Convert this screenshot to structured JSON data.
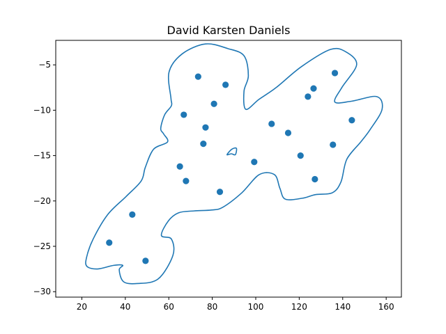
{
  "chart_data": {
    "type": "scatter",
    "title": "David Karsten Daniels",
    "xlabel": "",
    "ylabel": "",
    "xlim": [
      8,
      167
    ],
    "ylim": [
      -30.6,
      -2.3
    ],
    "xticks": [
      20,
      40,
      60,
      80,
      100,
      120,
      140,
      160
    ],
    "yticks": [
      -5,
      -10,
      -15,
      -20,
      -25,
      -30
    ],
    "xtick_labels": [
      "20",
      "40",
      "60",
      "80",
      "100",
      "120",
      "140",
      "160"
    ],
    "ytick_labels": [
      "−5",
      "−10",
      "−15",
      "−20",
      "−25",
      "−30"
    ],
    "grid": false,
    "colors": {
      "points": "#1f77b4",
      "contour": "#1f77b4"
    },
    "points": [
      {
        "x": 73.5,
        "y": -6.3
      },
      {
        "x": 86.1,
        "y": -7.2
      },
      {
        "x": 80.8,
        "y": -9.3
      },
      {
        "x": 66.9,
        "y": -10.5
      },
      {
        "x": 76.9,
        "y": -11.9
      },
      {
        "x": 75.9,
        "y": -13.7
      },
      {
        "x": 65.1,
        "y": -16.2
      },
      {
        "x": 67.9,
        "y": -17.8
      },
      {
        "x": 83.5,
        "y": -19.0
      },
      {
        "x": 99.3,
        "y": -15.7
      },
      {
        "x": 107.3,
        "y": -11.5
      },
      {
        "x": 114.9,
        "y": -12.5
      },
      {
        "x": 120.6,
        "y": -15.0
      },
      {
        "x": 124.0,
        "y": -8.5
      },
      {
        "x": 126.6,
        "y": -7.6
      },
      {
        "x": 136.4,
        "y": -5.9
      },
      {
        "x": 135.5,
        "y": -13.8
      },
      {
        "x": 144.2,
        "y": -11.1
      },
      {
        "x": 127.2,
        "y": -17.6
      },
      {
        "x": 43.2,
        "y": -21.5
      },
      {
        "x": 32.6,
        "y": -24.6
      },
      {
        "x": 49.3,
        "y": -26.6
      }
    ],
    "contours": [
      [
        [
          61.0,
          -8.7
        ],
        [
          60.1,
          -5.8
        ],
        [
          66.1,
          -3.8
        ],
        [
          76.8,
          -2.7
        ],
        [
          87.1,
          -3.2
        ],
        [
          94.6,
          -4.0
        ],
        [
          96.6,
          -6.2
        ],
        [
          94.6,
          -7.9
        ],
        [
          95.4,
          -9.9
        ],
        [
          101.5,
          -8.8
        ],
        [
          109.4,
          -7.5
        ],
        [
          121.0,
          -5.2
        ],
        [
          134.4,
          -3.3
        ],
        [
          141.7,
          -3.6
        ],
        [
          146.4,
          -5.0
        ],
        [
          139.6,
          -7.5
        ],
        [
          136.4,
          -9.1
        ],
        [
          144.2,
          -9.0
        ],
        [
          155.7,
          -8.5
        ],
        [
          158.1,
          -9.9
        ],
        [
          152.7,
          -12.1
        ],
        [
          148.3,
          -13.5
        ],
        [
          141.9,
          -15.4
        ],
        [
          139.2,
          -17.9
        ],
        [
          135.2,
          -19.1
        ],
        [
          127.5,
          -19.3
        ],
        [
          121.4,
          -19.7
        ],
        [
          113.6,
          -19.8
        ],
        [
          111.1,
          -18.6
        ],
        [
          108.6,
          -17.1
        ],
        [
          101.6,
          -17.1
        ],
        [
          93.6,
          -19.1
        ],
        [
          84.8,
          -20.7
        ],
        [
          79.6,
          -21.0
        ],
        [
          71.6,
          -21.1
        ],
        [
          64.6,
          -21.3
        ],
        [
          59.8,
          -22.2
        ],
        [
          56.6,
          -23.8
        ],
        [
          61.2,
          -24.2
        ],
        [
          61.9,
          -26.0
        ],
        [
          55.1,
          -28.6
        ],
        [
          45.5,
          -29.1
        ],
        [
          39.2,
          -28.9
        ],
        [
          37.2,
          -27.6
        ],
        [
          38.8,
          -27.1
        ],
        [
          34.6,
          -27.1
        ],
        [
          27.2,
          -27.5
        ],
        [
          22.3,
          -27.2
        ],
        [
          22.2,
          -26.2
        ],
        [
          25.2,
          -24.2
        ],
        [
          31.9,
          -21.5
        ],
        [
          40.4,
          -19.5
        ],
        [
          47.3,
          -17.8
        ],
        [
          49.2,
          -16.3
        ],
        [
          53.0,
          -14.3
        ],
        [
          59.4,
          -13.5
        ],
        [
          57.6,
          -12.6
        ],
        [
          56.3,
          -12.0
        ],
        [
          58.1,
          -10.5
        ],
        [
          61.2,
          -9.5
        ],
        [
          61.0,
          -8.7
        ]
      ],
      [
        [
          86.8,
          -14.9
        ],
        [
          89.0,
          -14.3
        ],
        [
          91.1,
          -14.2
        ],
        [
          90.6,
          -14.9
        ],
        [
          88.8,
          -14.8
        ],
        [
          86.8,
          -14.9
        ]
      ]
    ]
  }
}
